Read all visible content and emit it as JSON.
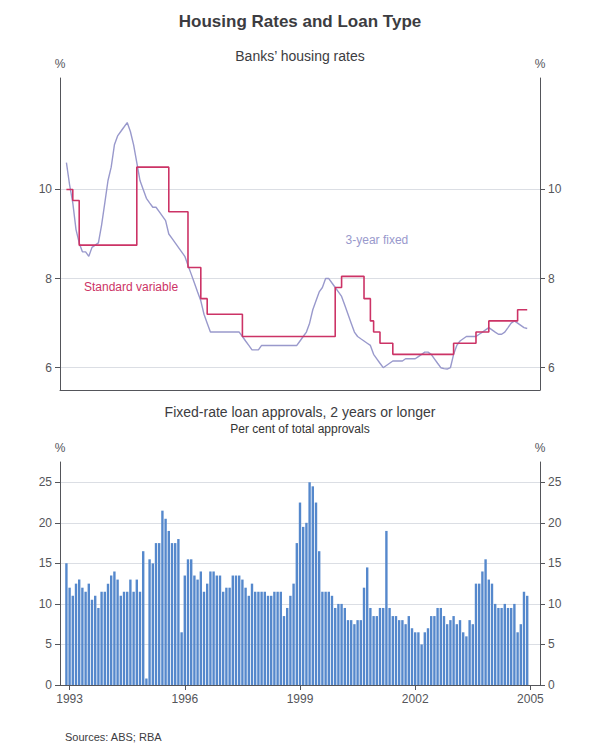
{
  "title": "Housing Rates and Loan Type",
  "source": "Sources: ABS; RBA",
  "chart_data": [
    {
      "type": "line",
      "title": "Banks’ housing rates",
      "xlim": [
        1992.75,
        2005.25
      ],
      "xticks": [
        1993,
        1996,
        1999,
        2002,
        2005
      ],
      "ylim": [
        5.5,
        12.5
      ],
      "yticks": [
        6,
        8,
        10
      ],
      "ylabel": "%",
      "y2lim": [
        5.5,
        12.5
      ],
      "y2ticks": [
        6,
        8,
        10
      ],
      "y2label": "%",
      "grid": true,
      "tick_labels": "y",
      "series": [
        {
          "name": "3-year fixed",
          "type": "line",
          "color": "#9999CC",
          "x": [
            1992.917,
            1993.0,
            1993.083,
            1993.167,
            1993.25,
            1993.333,
            1993.417,
            1993.5,
            1993.583,
            1993.667,
            1993.75,
            1993.833,
            1993.917,
            1994.0,
            1994.083,
            1994.167,
            1994.25,
            1994.333,
            1994.417,
            1994.5,
            1994.583,
            1994.667,
            1994.75,
            1994.833,
            1994.917,
            1995.0,
            1995.083,
            1995.167,
            1995.25,
            1995.333,
            1995.417,
            1995.5,
            1995.583,
            1995.667,
            1995.75,
            1995.833,
            1995.917,
            1996.0,
            1996.083,
            1996.167,
            1996.25,
            1996.333,
            1996.417,
            1996.5,
            1996.583,
            1996.667,
            1996.75,
            1996.833,
            1996.917,
            1997.0,
            1997.083,
            1997.167,
            1997.25,
            1997.333,
            1997.417,
            1997.5,
            1997.583,
            1997.667,
            1997.75,
            1997.833,
            1997.917,
            1998.0,
            1998.083,
            1998.167,
            1998.25,
            1998.333,
            1998.417,
            1998.5,
            1998.583,
            1998.667,
            1998.75,
            1998.833,
            1998.917,
            1999.0,
            1999.083,
            1999.167,
            1999.25,
            1999.333,
            1999.417,
            1999.5,
            1999.583,
            1999.667,
            1999.75,
            1999.833,
            1999.917,
            2000.0,
            2000.083,
            2000.167,
            2000.25,
            2000.333,
            2000.417,
            2000.5,
            2000.583,
            2000.667,
            2000.75,
            2000.833,
            2000.917,
            2001.0,
            2001.083,
            2001.167,
            2001.25,
            2001.333,
            2001.417,
            2001.5,
            2001.583,
            2001.667,
            2001.75,
            2001.833,
            2001.917,
            2002.0,
            2002.083,
            2002.167,
            2002.25,
            2002.333,
            2002.417,
            2002.5,
            2002.583,
            2002.667,
            2002.75,
            2002.833,
            2002.917,
            2003.0,
            2003.083,
            2003.167,
            2003.25,
            2003.333,
            2003.417,
            2003.5,
            2003.583,
            2003.667,
            2003.75,
            2003.833,
            2003.917,
            2004.0,
            2004.083,
            2004.167,
            2004.25,
            2004.333,
            2004.417,
            2004.5,
            2004.583,
            2004.667,
            2004.75,
            2004.833,
            2004.917
          ],
          "values": [
            10.6,
            10.1,
            9.7,
            9.1,
            8.8,
            8.6,
            8.6,
            8.5,
            8.7,
            8.75,
            8.8,
            9.2,
            9.7,
            10.2,
            10.5,
            11.0,
            11.2,
            11.3,
            11.4,
            11.5,
            11.3,
            11.0,
            10.6,
            10.2,
            10.0,
            9.8,
            9.7,
            9.6,
            9.6,
            9.5,
            9.4,
            9.3,
            9.0,
            8.9,
            8.8,
            8.7,
            8.6,
            8.5,
            8.3,
            8.1,
            7.9,
            7.7,
            7.5,
            7.2,
            7.0,
            6.8,
            6.8,
            6.8,
            6.8,
            6.8,
            6.8,
            6.8,
            6.8,
            6.8,
            6.8,
            6.7,
            6.6,
            6.5,
            6.4,
            6.4,
            6.4,
            6.5,
            6.5,
            6.5,
            6.5,
            6.5,
            6.5,
            6.5,
            6.5,
            6.5,
            6.5,
            6.5,
            6.5,
            6.6,
            6.7,
            6.8,
            7.0,
            7.3,
            7.5,
            7.7,
            7.8,
            8.0,
            8.0,
            7.9,
            7.8,
            7.7,
            7.6,
            7.4,
            7.2,
            7.0,
            6.8,
            6.7,
            6.65,
            6.6,
            6.55,
            6.5,
            6.3,
            6.2,
            6.1,
            6.0,
            6.05,
            6.1,
            6.15,
            6.15,
            6.15,
            6.15,
            6.2,
            6.2,
            6.2,
            6.2,
            6.25,
            6.3,
            6.35,
            6.35,
            6.3,
            6.2,
            6.1,
            6.0,
            5.98,
            5.97,
            6.0,
            6.3,
            6.5,
            6.6,
            6.65,
            6.7,
            6.7,
            6.7,
            6.7,
            6.75,
            6.8,
            6.85,
            6.9,
            6.85,
            6.8,
            6.75,
            6.75,
            6.8,
            6.9,
            7.0,
            7.05,
            7.0,
            6.95,
            6.9,
            6.88
          ]
        },
        {
          "name": "Standard variable",
          "type": "step",
          "color": "#CC3366",
          "x": [
            1992.917,
            1993.0,
            1993.083,
            1993.25,
            1993.5,
            1993.583,
            1993.917,
            1994.0,
            1994.583,
            1994.667,
            1994.75,
            1994.833,
            1994.917,
            1995.417,
            1995.5,
            1995.583,
            1995.667,
            1995.75,
            1995.833,
            1995.917,
            1996.0,
            1996.083,
            1996.25,
            1996.333,
            1996.417,
            1996.5,
            1996.583,
            1996.667,
            1996.75,
            1996.833,
            1996.917,
            1997.0,
            1997.417,
            1997.5,
            1997.583,
            1997.667,
            1997.75,
            1997.833,
            1997.917,
            1998.0,
            1998.083,
            1998.167,
            1998.25,
            1998.333,
            1998.417,
            1998.5,
            1998.583,
            1998.667,
            1998.75,
            1998.833,
            1998.917,
            1999.0,
            1999.667,
            1999.75,
            1999.833,
            1999.917,
            2000.0,
            2000.083,
            2000.167,
            2000.25,
            2000.333,
            2000.417,
            2000.5,
            2000.583,
            2000.667,
            2000.75,
            2000.833,
            2000.917,
            2001.0,
            2001.083,
            2001.167,
            2001.25,
            2001.333,
            2001.417,
            2001.5,
            2001.583,
            2001.667,
            2001.75,
            2001.833,
            2001.917,
            2002.0,
            2002.083,
            2002.167,
            2002.333,
            2002.583,
            2002.667,
            2002.75,
            2002.833,
            2002.917,
            2003.0,
            2003.083,
            2003.167,
            2003.25,
            2003.333,
            2003.583,
            2003.667,
            2003.75,
            2003.833,
            2003.917,
            2004.0,
            2004.083,
            2004.167,
            2004.25,
            2004.333,
            2004.417,
            2004.5,
            2004.583,
            2004.667,
            2004.75,
            2004.833,
            2004.917
          ],
          "values": [
            10.0,
            10.0,
            9.75,
            8.75,
            8.75,
            8.75,
            8.75,
            8.75,
            8.75,
            8.75,
            10.5,
            10.5,
            10.5,
            10.5,
            10.5,
            9.5,
            9.5,
            9.5,
            9.5,
            9.5,
            9.5,
            8.25,
            8.25,
            8.25,
            7.55,
            7.55,
            7.2,
            7.2,
            7.2,
            7.2,
            7.2,
            7.2,
            7.2,
            6.7,
            6.7,
            6.7,
            6.7,
            6.7,
            6.7,
            6.7,
            6.7,
            6.7,
            6.7,
            6.7,
            6.7,
            6.7,
            6.7,
            6.7,
            6.7,
            6.7,
            6.7,
            6.7,
            6.7,
            6.7,
            6.7,
            7.8,
            7.8,
            8.05,
            8.05,
            8.05,
            8.05,
            8.05,
            8.05,
            8.05,
            7.55,
            7.55,
            7.05,
            6.8,
            6.8,
            6.55,
            6.55,
            6.55,
            6.55,
            6.3,
            6.3,
            6.3,
            6.3,
            6.3,
            6.3,
            6.3,
            6.3,
            6.3,
            6.3,
            6.3,
            6.3,
            6.3,
            6.3,
            6.3,
            6.3,
            6.55,
            6.55,
            6.55,
            6.55,
            6.55,
            6.8,
            6.8,
            6.8,
            6.8,
            7.05,
            7.05,
            7.05,
            7.05,
            7.05,
            7.05,
            7.05,
            7.05,
            7.05,
            7.3,
            7.3,
            7.3,
            7.3
          ]
        }
      ]
    },
    {
      "type": "bar",
      "title": "Fixed-rate loan approvals, 2 years or longer",
      "subtitle": "Per cent of total approvals",
      "color": "#5588CC",
      "xlim": [
        1992.75,
        2005.25
      ],
      "xticks": [
        1993,
        1996,
        1999,
        2002,
        2005
      ],
      "ylim": [
        0,
        27.5
      ],
      "yticks": [
        0,
        5,
        10,
        15,
        20,
        25
      ],
      "ylabel": "%",
      "y2lim": [
        0,
        27.5
      ],
      "y2ticks": [
        0,
        5,
        10,
        15,
        20,
        25
      ],
      "y2label": "%",
      "grid": true,
      "x": [
        1992.917,
        1993.0,
        1993.083,
        1993.167,
        1993.25,
        1993.333,
        1993.417,
        1993.5,
        1993.583,
        1993.667,
        1993.75,
        1993.833,
        1993.917,
        1994.0,
        1994.083,
        1994.167,
        1994.25,
        1994.333,
        1994.417,
        1994.5,
        1994.583,
        1994.667,
        1994.75,
        1994.833,
        1994.917,
        1995.0,
        1995.083,
        1995.167,
        1995.25,
        1995.333,
        1995.417,
        1995.5,
        1995.583,
        1995.667,
        1995.75,
        1995.833,
        1995.917,
        1996.0,
        1996.083,
        1996.167,
        1996.25,
        1996.333,
        1996.417,
        1996.5,
        1996.583,
        1996.667,
        1996.75,
        1996.833,
        1996.917,
        1997.0,
        1997.083,
        1997.167,
        1997.25,
        1997.333,
        1997.417,
        1997.5,
        1997.583,
        1997.667,
        1997.75,
        1997.833,
        1997.917,
        1998.0,
        1998.083,
        1998.167,
        1998.25,
        1998.333,
        1998.417,
        1998.5,
        1998.583,
        1998.667,
        1998.75,
        1998.833,
        1998.917,
        1999.0,
        1999.083,
        1999.167,
        1999.25,
        1999.333,
        1999.417,
        1999.5,
        1999.583,
        1999.667,
        1999.75,
        1999.833,
        1999.917,
        2000.0,
        2000.083,
        2000.167,
        2000.25,
        2000.333,
        2000.417,
        2000.5,
        2000.583,
        2000.667,
        2000.75,
        2000.833,
        2000.917,
        2001.0,
        2001.083,
        2001.167,
        2001.25,
        2001.333,
        2001.417,
        2001.5,
        2001.583,
        2001.667,
        2001.75,
        2001.833,
        2001.917,
        2002.0,
        2002.083,
        2002.167,
        2002.25,
        2002.333,
        2002.417,
        2002.5,
        2002.583,
        2002.667,
        2002.75,
        2002.833,
        2002.917,
        2003.0,
        2003.083,
        2003.167,
        2003.25,
        2003.333,
        2003.417,
        2003.5,
        2003.583,
        2003.667,
        2003.75,
        2003.833,
        2003.917,
        2004.0,
        2004.083,
        2004.167,
        2004.25,
        2004.333,
        2004.417,
        2004.5,
        2004.583,
        2004.667,
        2004.75,
        2004.833,
        2004.917
      ],
      "values": [
        15.0,
        12.0,
        11.0,
        12.5,
        13.0,
        12.0,
        11.5,
        12.5,
        10.5,
        11.0,
        9.5,
        11.5,
        11.5,
        12.5,
        13.5,
        14.0,
        13.0,
        11.0,
        11.5,
        11.5,
        13.0,
        11.5,
        13.0,
        11.5,
        16.5,
        0.8,
        15.5,
        15.0,
        17.5,
        17.5,
        21.5,
        20.5,
        19.0,
        17.5,
        17.5,
        18.0,
        6.5,
        13.5,
        15.5,
        15.5,
        13.5,
        13.0,
        14.0,
        11.5,
        12.5,
        14.0,
        14.0,
        13.5,
        13.5,
        11.5,
        12.0,
        12.0,
        13.5,
        13.5,
        13.5,
        13.0,
        12.0,
        11.0,
        12.5,
        11.5,
        11.5,
        11.5,
        11.5,
        11.0,
        11.0,
        11.5,
        11.5,
        11.5,
        8.5,
        9.5,
        11.0,
        12.5,
        17.5,
        22.5,
        19.5,
        20.0,
        25.0,
        24.5,
        22.5,
        16.5,
        11.5,
        11.5,
        11.5,
        11.0,
        9.5,
        10.0,
        10.0,
        9.5,
        8.0,
        8.0,
        7.5,
        8.0,
        8.0,
        12.0,
        14.5,
        9.5,
        8.5,
        8.5,
        9.5,
        9.5,
        19.0,
        9.5,
        8.5,
        8.5,
        8.0,
        8.0,
        7.5,
        8.5,
        7.0,
        6.5,
        6.5,
        5.0,
        6.5,
        7.0,
        8.5,
        8.5,
        9.5,
        9.5,
        8.5,
        7.5,
        8.0,
        8.5,
        7.5,
        8.0,
        6.5,
        6.0,
        8.0,
        7.5,
        12.5,
        12.5,
        14.0,
        15.5,
        13.0,
        12.5,
        10.0,
        9.5,
        9.5,
        10.0,
        9.5,
        9.5,
        10.0,
        6.5,
        7.5,
        11.5,
        11.0
      ]
    }
  ]
}
